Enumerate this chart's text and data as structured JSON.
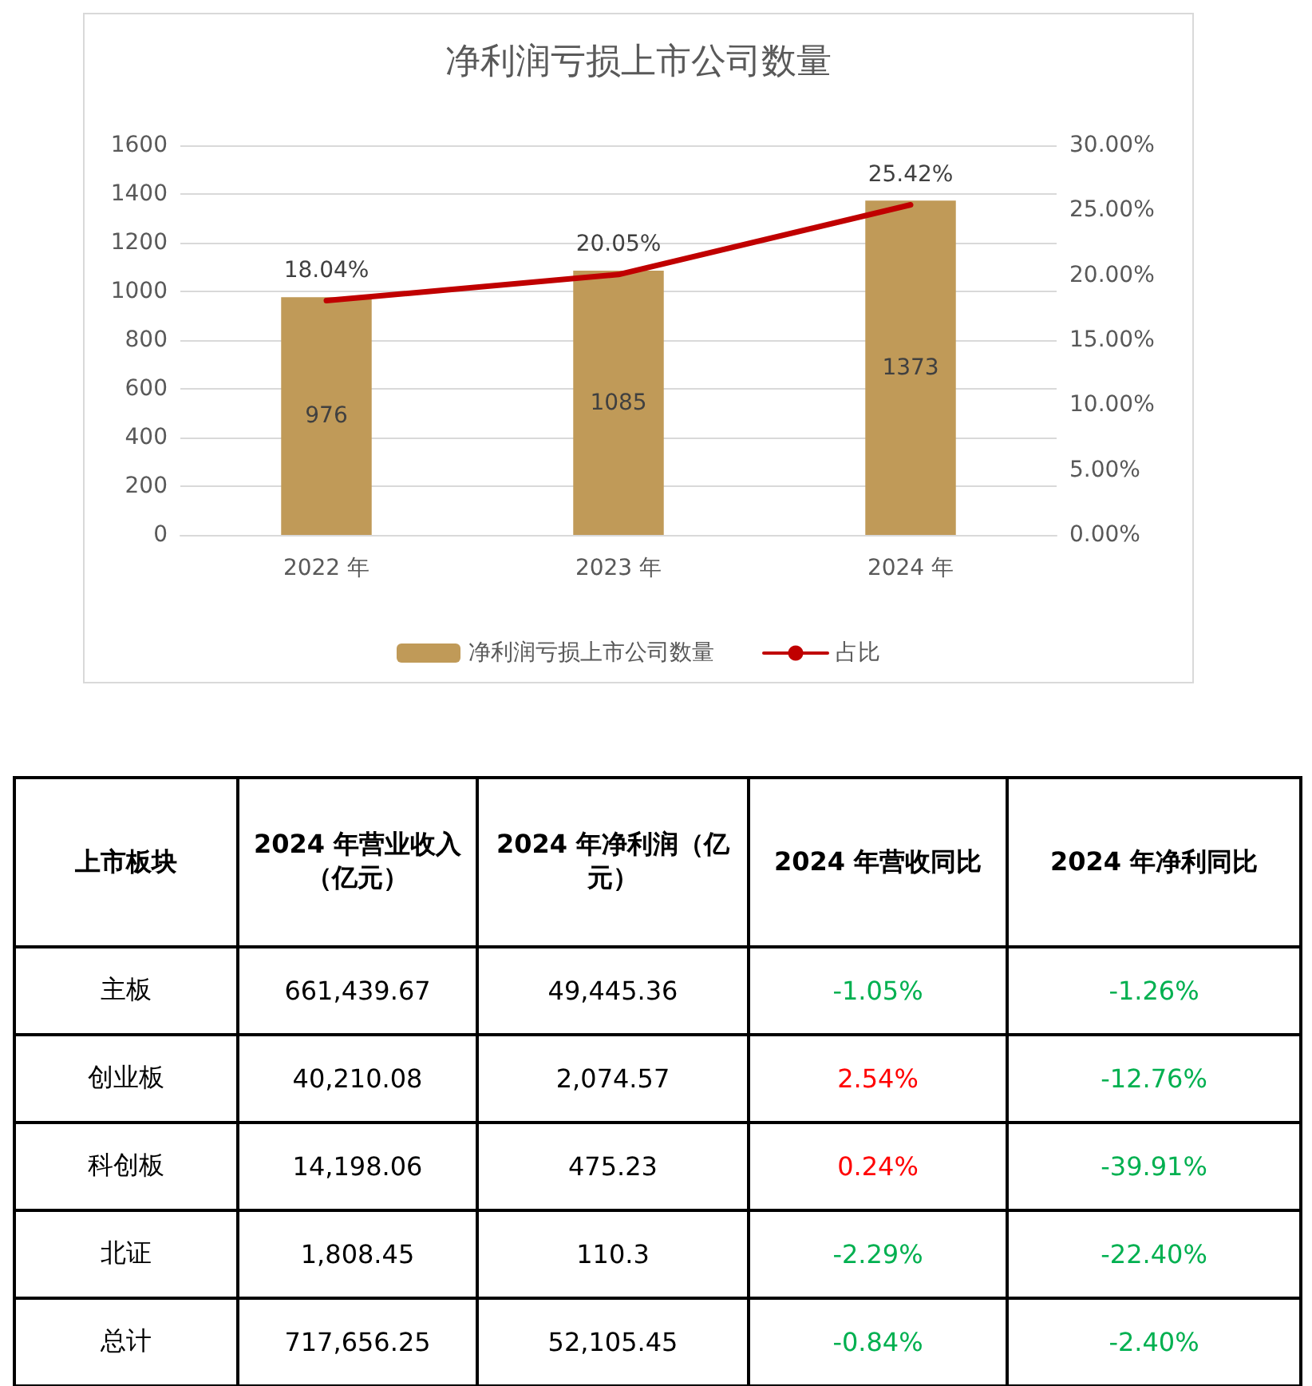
{
  "chart_data": [
    {
      "type": "bar",
      "title": "净利润亏损上市公司数量",
      "categories": [
        "2022 年",
        "2023 年",
        "2024 年"
      ],
      "series": [
        {
          "name": "净利润亏损上市公司数量",
          "type": "bar",
          "color": "#c09a58",
          "values": [
            976,
            1085,
            1373
          ]
        },
        {
          "name": "占比",
          "type": "line",
          "axis": "y2",
          "color": "#c00000",
          "values": [
            18.04,
            20.05,
            25.42
          ],
          "value_labels": [
            "18.04%",
            "20.05%",
            "25.42%"
          ]
        }
      ],
      "data_labels": true,
      "ylim": [
        0,
        1600
      ],
      "yticks": [
        0,
        200,
        400,
        600,
        800,
        1000,
        1200,
        1400,
        1600
      ],
      "y2lim": [
        0,
        30
      ],
      "y2ticks": [
        {
          "value": 0,
          "label": "0.00%"
        },
        {
          "value": 5,
          "label": "5.00%"
        },
        {
          "value": 10,
          "label": "10.00%"
        },
        {
          "value": 15,
          "label": "15.00%"
        },
        {
          "value": 20,
          "label": "20.00%"
        },
        {
          "value": 25,
          "label": "25.00%"
        },
        {
          "value": 30,
          "label": "30.00%"
        }
      ],
      "grid": "y",
      "legend": "bottom",
      "marker": "none",
      "line_style": "solid"
    },
    {
      "type": "other",
      "ylabel": "上市板块",
      "categories": [
        "2024 年营业收入（亿元）",
        "2024 年净利润（亿元）",
        "2024 年营收同比",
        "2024 年净利同比"
      ],
      "y_categories": [
        "主板",
        "创业板",
        "科创板",
        "北证",
        "总计"
      ],
      "cell_labels": [
        [
          "661,439.67",
          "49,445.36",
          "-1.05%",
          "-1.26%"
        ],
        [
          "40,210.08",
          "2,074.57",
          "2.54%",
          "-12.76%"
        ],
        [
          "14,198.06",
          "475.23",
          "0.24%",
          "-39.91%"
        ],
        [
          "1,808.45",
          "110.3",
          "-2.29%",
          "-22.40%"
        ],
        [
          "717,656.25",
          "52,105.45",
          "-0.84%",
          "-2.40%"
        ]
      ]
    }
  ]
}
